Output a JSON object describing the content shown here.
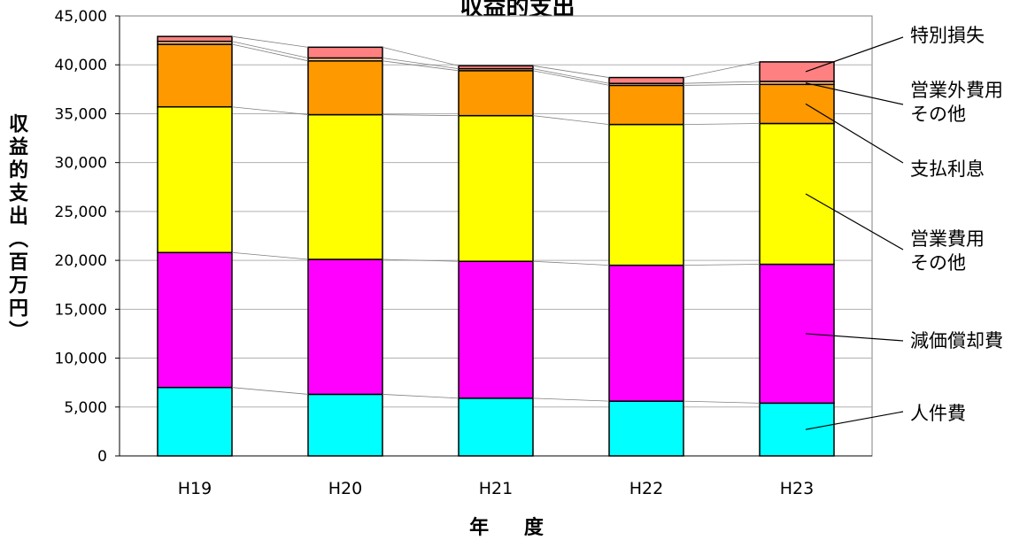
{
  "chart_data": {
    "type": "bar",
    "stacked": true,
    "title": "収益的支出",
    "xlabel": "年 度",
    "ylabel": "収益的支出（百万円）",
    "ylim": [
      0,
      45000
    ],
    "yticks": [
      0,
      5000,
      10000,
      15000,
      20000,
      25000,
      30000,
      35000,
      40000,
      45000
    ],
    "ytick_labels": [
      "0",
      "5,000",
      "10,000",
      "15,000",
      "20,000",
      "25,000",
      "30,000",
      "35,000",
      "40,000",
      "45,000"
    ],
    "grid": true,
    "categories": [
      "H19",
      "H20",
      "H21",
      "H22",
      "H23"
    ],
    "series": [
      {
        "name": "人件費",
        "color": "#00FFFF",
        "values": [
          7000,
          6300,
          5900,
          5600,
          5400
        ]
      },
      {
        "name": "減価償却費",
        "color": "#FF00FF",
        "values": [
          13800,
          13800,
          14000,
          13900,
          14200
        ]
      },
      {
        "name": "営業費用\nその他",
        "color": "#FFFF00",
        "values": [
          14900,
          14800,
          14900,
          14400,
          14400
        ]
      },
      {
        "name": "支払利息",
        "color": "#FF9900",
        "values": [
          6400,
          5500,
          4600,
          4000,
          4000
        ]
      },
      {
        "name": "営業外費用\nその他",
        "color": "#FFCC99",
        "values": [
          300,
          300,
          200,
          200,
          300
        ]
      },
      {
        "name": "特別損失",
        "color": "#FF8080",
        "values": [
          500,
          1100,
          300,
          600,
          2000
        ]
      }
    ],
    "legend_placement": "right"
  }
}
